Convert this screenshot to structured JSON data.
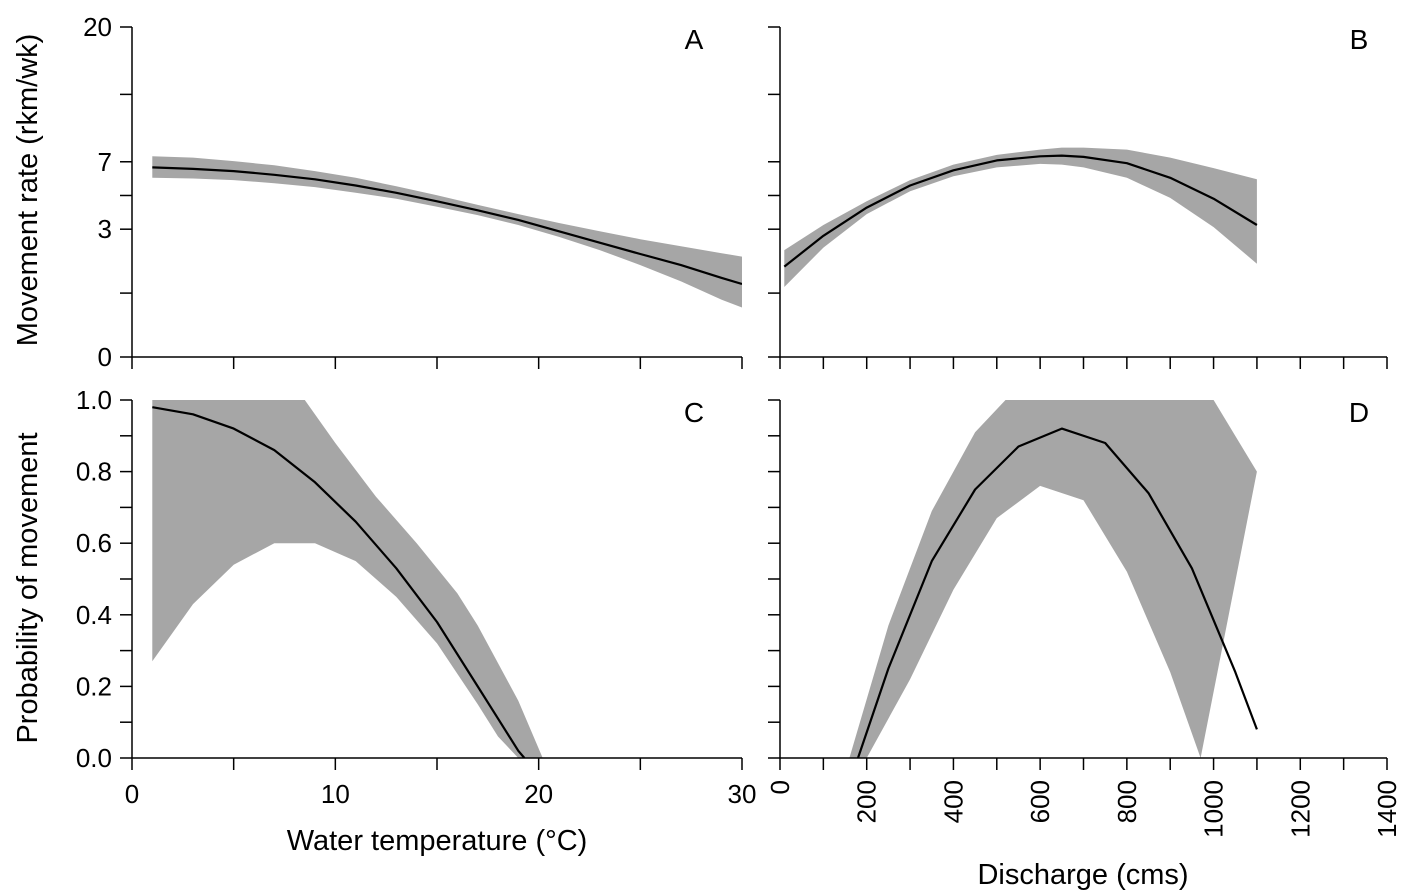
{
  "chart_data": [
    {
      "panel": "A",
      "type": "line",
      "label": "A",
      "ylabel": "Movement rate (rkm/wk)",
      "xlabel": "",
      "y_scale": "sqrt",
      "yticks": [
        0,
        3,
        7,
        20
      ],
      "ylim": [
        0,
        20
      ],
      "xticks": [
        0,
        10,
        20,
        30
      ],
      "xlim": [
        0,
        30
      ],
      "show_x_tick_labels": false,
      "series": [
        {
          "x": [
            1,
            3,
            5,
            7,
            9,
            11,
            13,
            15,
            17,
            19,
            21,
            23,
            25,
            27,
            29,
            30
          ],
          "y": [
            6.6,
            6.5,
            6.35,
            6.1,
            5.8,
            5.4,
            4.95,
            4.45,
            3.95,
            3.45,
            2.9,
            2.4,
            1.95,
            1.55,
            1.15,
            0.98
          ],
          "lower": [
            5.9,
            5.85,
            5.75,
            5.55,
            5.3,
            4.95,
            4.6,
            4.15,
            3.7,
            3.2,
            2.65,
            2.1,
            1.55,
            1.05,
            0.6,
            0.45
          ],
          "upper": [
            7.4,
            7.3,
            7.05,
            6.75,
            6.35,
            5.9,
            5.35,
            4.8,
            4.25,
            3.75,
            3.3,
            2.9,
            2.55,
            2.25,
            1.98,
            1.85
          ]
        }
      ]
    },
    {
      "panel": "B",
      "type": "line",
      "label": "B",
      "y_scale": "sqrt",
      "yticks": [
        0,
        3,
        7,
        20
      ],
      "ylim": [
        0,
        20
      ],
      "xlim": [
        0,
        1400
      ],
      "xtick_step": 100,
      "show_x_tick_labels": false,
      "series": [
        {
          "x": [
            10,
            100,
            200,
            300,
            400,
            500,
            600,
            650,
            700,
            800,
            900,
            1000,
            1100
          ],
          "y": [
            1.5,
            2.7,
            4.1,
            5.4,
            6.4,
            7.1,
            7.4,
            7.45,
            7.35,
            6.9,
            5.9,
            4.6,
            3.2
          ],
          "lower": [
            0.9,
            2.2,
            3.75,
            5.05,
            6.0,
            6.6,
            6.85,
            6.8,
            6.6,
            5.9,
            4.65,
            3.1,
            1.6
          ],
          "upper": [
            2.1,
            3.2,
            4.45,
            5.75,
            6.8,
            7.5,
            7.9,
            8.05,
            8.05,
            7.9,
            7.3,
            6.55,
            5.8
          ]
        }
      ]
    },
    {
      "panel": "C",
      "type": "line",
      "label": "C",
      "ylabel": "Probability of movement",
      "xlabel": "Water temperature (°C)",
      "yticks": [
        0.0,
        0.2,
        0.4,
        0.6,
        0.8,
        1.0
      ],
      "ytick_labels": [
        "0.0",
        "0.2",
        "0.4",
        "0.6",
        "0.8",
        "1.0"
      ],
      "ylim": [
        0,
        1
      ],
      "xticks": [
        0,
        10,
        20,
        30
      ],
      "xtick_labels": [
        "0",
        "10",
        "20",
        "30"
      ],
      "xlim": [
        0,
        30
      ],
      "series": [
        {
          "x": [
            1,
            3,
            5,
            7,
            9,
            11,
            13,
            15,
            17,
            18,
            19,
            19.3
          ],
          "y": [
            0.98,
            0.96,
            0.92,
            0.86,
            0.77,
            0.66,
            0.53,
            0.38,
            0.2,
            0.11,
            0.02,
            0.0
          ],
          "lower": [
            0.27,
            0.43,
            0.54,
            0.6,
            0.6,
            0.55,
            0.45,
            0.32,
            0.15,
            0.06,
            0.0,
            0.0
          ],
          "upper": [
            1.0,
            1.0,
            1.0,
            1.0,
            1.0,
            0.98,
            0.85,
            0.74,
            0.62,
            0.55,
            0.47,
            0.43
          ],
          "upper_x": [
            1,
            3,
            5,
            7,
            8.5,
            10,
            12,
            14,
            16,
            17,
            19,
            20.2
          ],
          "upper_y": [
            1.0,
            1.0,
            1.0,
            1.0,
            1.0,
            0.88,
            0.73,
            0.6,
            0.46,
            0.37,
            0.16,
            0.0
          ]
        }
      ]
    },
    {
      "panel": "D",
      "type": "line",
      "label": "D",
      "xlabel": "Discharge (cms)",
      "yticks": [
        0.0,
        0.2,
        0.4,
        0.6,
        0.8,
        1.0
      ],
      "ylim": [
        0,
        1
      ],
      "xticks": [
        0,
        200,
        400,
        600,
        800,
        1000,
        1200,
        1400
      ],
      "xtick_labels": [
        "0",
        "200",
        "400",
        "600",
        "800",
        "1000",
        "1200",
        "1400"
      ],
      "xlim": [
        0,
        1400
      ],
      "xtick_step": 100,
      "series": [
        {
          "x": [
            180,
            250,
            350,
            450,
            550,
            650,
            750,
            850,
            950,
            1050,
            1100
          ],
          "y": [
            0.0,
            0.25,
            0.55,
            0.75,
            0.87,
            0.92,
            0.88,
            0.74,
            0.53,
            0.24,
            0.08
          ],
          "band_top_x": [
            160,
            250,
            350,
            450,
            520,
            1000,
            1100
          ],
          "band_top_y": [
            0.0,
            0.37,
            0.69,
            0.91,
            1.0,
            1.0,
            0.8
          ],
          "band_bottom_x": [
            200,
            300,
            400,
            500,
            600,
            700,
            800,
            900,
            970
          ],
          "band_bottom_y": [
            0.0,
            0.22,
            0.47,
            0.67,
            0.76,
            0.72,
            0.52,
            0.24,
            0.0
          ]
        }
      ]
    }
  ]
}
